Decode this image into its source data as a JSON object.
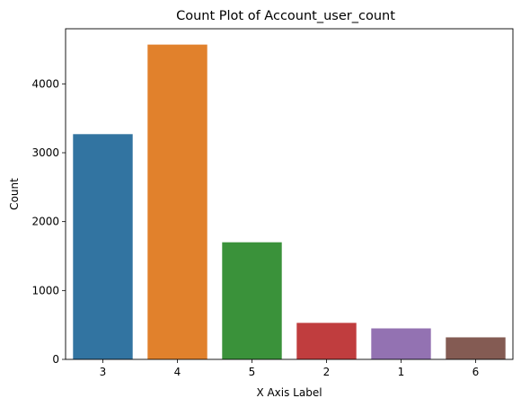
{
  "chart_data": {
    "type": "bar",
    "title": "Count Plot of Account_user_count",
    "xlabel": "X Axis Label",
    "ylabel": "Count",
    "categories": [
      "3",
      "4",
      "5",
      "2",
      "1",
      "6"
    ],
    "values": [
      3270,
      4570,
      1700,
      530,
      450,
      320
    ],
    "colors": [
      "#3274a1",
      "#e1812c",
      "#3a923a",
      "#c03d3e",
      "#9372b2",
      "#845b53"
    ],
    "ylim": [
      0,
      4800
    ],
    "yticks": [
      0,
      1000,
      2000,
      3000,
      4000
    ],
    "grid": false
  }
}
